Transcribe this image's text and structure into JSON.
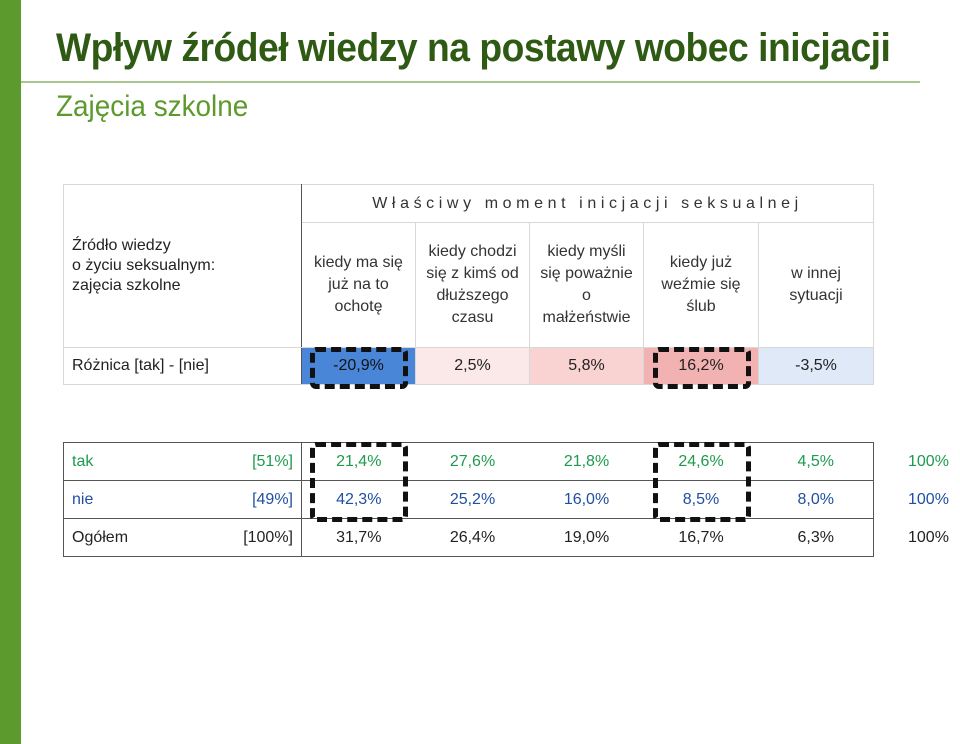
{
  "slide": {
    "title": "Wpływ źródeł wiedzy na postawy wobec inicjacji",
    "subtitle": "Zajęcia szkolne"
  },
  "top_table": {
    "source_label": [
      "Źródło wiedzy",
      "o życiu seksualnym:",
      "zajęcia szkolne"
    ],
    "moment_header": "Właściwy moment inicjacji seksualnej",
    "columns": [
      [
        "kiedy ma się",
        "już na to",
        "ochotę"
      ],
      [
        "kiedy chodzi",
        "się z kimś od",
        "dłuższego",
        "czasu"
      ],
      [
        "kiedy myśli",
        "się poważnie",
        "o",
        "małżeństwie"
      ],
      [
        "kiedy już",
        "weźmie się",
        "ślub"
      ],
      [
        "w innej",
        "sytuacji"
      ]
    ],
    "difference_row": {
      "label": "Różnica [tak] - [nie]",
      "values": [
        "-20,9%",
        "2,5%",
        "5,8%",
        "16,2%",
        "-3,5%"
      ]
    }
  },
  "bottom_table": {
    "rows": [
      {
        "label": "tak",
        "share": "[51%]",
        "values": [
          "21,4%",
          "27,6%",
          "21,8%",
          "24,6%",
          "4,5%"
        ],
        "total": "100%"
      },
      {
        "label": "nie",
        "share": "[49%]",
        "values": [
          "42,3%",
          "25,2%",
          "16,0%",
          "8,5%",
          "8,0%"
        ],
        "total": "100%"
      },
      {
        "label": "Ogółem",
        "share": "[100%]",
        "values": [
          "31,7%",
          "26,4%",
          "19,0%",
          "16,7%",
          "6,3%"
        ],
        "total": "100%"
      }
    ]
  },
  "colors": {
    "title": "#2e5a14",
    "accent": "#5c9a2e",
    "negative_strong": "#4a86d8",
    "positive_strong": "#f2b2b2",
    "tak_text": "#1e9a4e",
    "nie_text": "#1f4fa0"
  }
}
